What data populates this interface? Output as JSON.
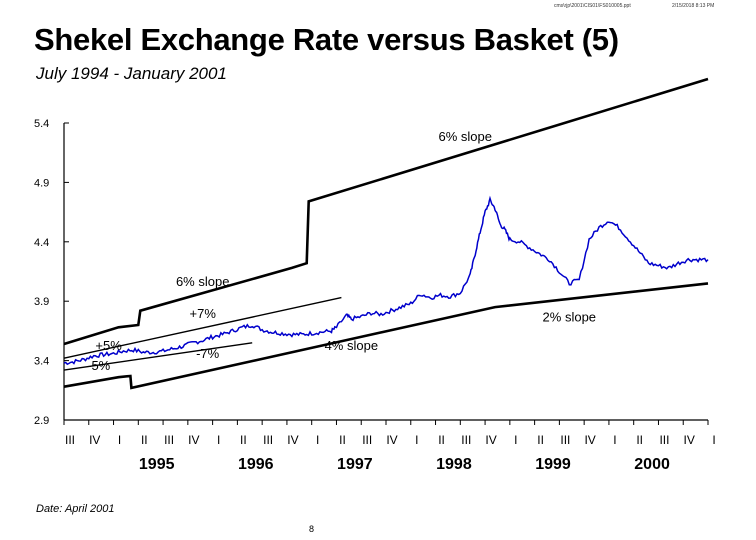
{
  "header": {
    "file_path": "cms\\rjp\\2001\\CIS01\\FS010005.ppt",
    "timestamp": "2/15/2018 8:13 PM"
  },
  "footer": {
    "date_note": "Date: April 2001",
    "page_number": "8"
  },
  "colors": {
    "series": "#0000cc",
    "band": "#000000",
    "axis": "#000000"
  },
  "chart_data": {
    "type": "line",
    "title": "Shekel Exchange Rate versus Basket (5)",
    "subtitle": "July 1994 - January 2001",
    "xlabel": "",
    "ylabel": "",
    "xlim": [
      1994.5,
      2001.0
    ],
    "ylim": [
      2.9,
      5.4
    ],
    "y_ticks": [
      "5.4",
      "4.9",
      "4.4",
      "3.9",
      "3.4",
      "2.9"
    ],
    "grid": false,
    "quarter_ticks": [
      "III",
      "IV",
      "I",
      "II",
      "III",
      "IV",
      "I",
      "II",
      "III",
      "IV",
      "I",
      "II",
      "III",
      "IV",
      "I",
      "II",
      "III",
      "IV",
      "I",
      "II",
      "III",
      "IV",
      "I",
      "II",
      "III",
      "IV",
      "I"
    ],
    "year_labels": [
      {
        "label": "1995",
        "x": 1995.375
      },
      {
        "label": "1996",
        "x": 1996.375
      },
      {
        "label": "1997",
        "x": 1997.375
      },
      {
        "label": "1998",
        "x": 1998.375
      },
      {
        "label": "1999",
        "x": 1999.375
      },
      {
        "label": "2000",
        "x": 2000.375
      }
    ],
    "series": [
      {
        "values": [
          [
            1994.5,
            3.38
          ],
          [
            1994.6,
            3.39
          ],
          [
            1994.7,
            3.41
          ],
          [
            1994.8,
            3.44
          ],
          [
            1994.9,
            3.45
          ],
          [
            1995.0,
            3.46
          ],
          [
            1995.1,
            3.48
          ],
          [
            1995.2,
            3.49
          ],
          [
            1995.3,
            3.47
          ],
          [
            1995.4,
            3.47
          ],
          [
            1995.5,
            3.48
          ],
          [
            1995.6,
            3.5
          ],
          [
            1995.7,
            3.52
          ],
          [
            1995.8,
            3.55
          ],
          [
            1995.9,
            3.57
          ],
          [
            1996.0,
            3.6
          ],
          [
            1996.1,
            3.62
          ],
          [
            1996.2,
            3.65
          ],
          [
            1996.3,
            3.68
          ],
          [
            1996.4,
            3.7
          ],
          [
            1996.5,
            3.66
          ],
          [
            1996.6,
            3.64
          ],
          [
            1996.7,
            3.63
          ],
          [
            1996.8,
            3.62
          ],
          [
            1996.9,
            3.62
          ],
          [
            1997.0,
            3.63
          ],
          [
            1997.1,
            3.64
          ],
          [
            1997.2,
            3.65
          ],
          [
            1997.25,
            3.68
          ],
          [
            1997.35,
            3.78
          ],
          [
            1997.4,
            3.75
          ],
          [
            1997.5,
            3.77
          ],
          [
            1997.6,
            3.8
          ],
          [
            1997.7,
            3.79
          ],
          [
            1997.8,
            3.82
          ],
          [
            1997.9,
            3.85
          ],
          [
            1998.0,
            3.88
          ],
          [
            1998.1,
            3.96
          ],
          [
            1998.2,
            3.93
          ],
          [
            1998.3,
            3.95
          ],
          [
            1998.4,
            3.94
          ],
          [
            1998.5,
            3.97
          ],
          [
            1998.6,
            4.12
          ],
          [
            1998.65,
            4.3
          ],
          [
            1998.7,
            4.48
          ],
          [
            1998.75,
            4.65
          ],
          [
            1998.8,
            4.75
          ],
          [
            1998.85,
            4.68
          ],
          [
            1998.9,
            4.55
          ],
          [
            1998.95,
            4.5
          ],
          [
            1999.0,
            4.42
          ],
          [
            1999.1,
            4.4
          ],
          [
            1999.2,
            4.35
          ],
          [
            1999.3,
            4.3
          ],
          [
            1999.4,
            4.25
          ],
          [
            1999.5,
            4.15
          ],
          [
            1999.6,
            4.05
          ],
          [
            1999.7,
            4.08
          ],
          [
            1999.8,
            4.42
          ],
          [
            1999.9,
            4.52
          ],
          [
            2000.0,
            4.58
          ],
          [
            2000.1,
            4.52
          ],
          [
            2000.2,
            4.42
          ],
          [
            2000.3,
            4.32
          ],
          [
            2000.4,
            4.22
          ],
          [
            2000.5,
            4.2
          ],
          [
            2000.6,
            4.18
          ],
          [
            2000.7,
            4.22
          ],
          [
            2000.8,
            4.25
          ],
          [
            2000.9,
            4.25
          ],
          [
            2001.0,
            4.25
          ]
        ]
      }
    ],
    "bands": [
      {
        "values": [
          [
            1994.5,
            3.54
          ],
          [
            1995.05,
            3.68
          ],
          [
            1995.25,
            3.7
          ],
          [
            1995.27,
            3.82
          ],
          [
            1996.8,
            4.18
          ],
          [
            1996.95,
            4.22
          ],
          [
            1996.97,
            4.74
          ],
          [
            2001.0,
            5.77
          ]
        ]
      },
      {
        "values": [
          [
            1994.5,
            3.18
          ],
          [
            1995.05,
            3.26
          ],
          [
            1995.17,
            3.27
          ],
          [
            1995.18,
            3.17
          ],
          [
            1998.85,
            3.85
          ],
          [
            2001.0,
            4.05
          ]
        ]
      },
      {
        "values": [
          [
            1994.5,
            3.42
          ],
          [
            1997.3,
            3.93
          ]
        ]
      },
      {
        "values": [
          [
            1994.5,
            3.32
          ],
          [
            1996.4,
            3.55
          ]
        ]
      }
    ],
    "annotations": [
      {
        "text": "6% slope",
        "x": 1998.55,
        "y": 5.25
      },
      {
        "text": "6% slope",
        "x": 1995.9,
        "y": 4.03
      },
      {
        "text": "+7%",
        "x": 1995.9,
        "y": 3.76
      },
      {
        "text": "2% slope",
        "x": 1999.6,
        "y": 3.73
      },
      {
        "text": "4% slope",
        "x": 1997.4,
        "y": 3.49
      },
      {
        "text": "-7%",
        "x": 1995.95,
        "y": 3.42
      },
      {
        "text": "+5%",
        "x": 1994.95,
        "y": 3.49
      },
      {
        "text": "-5%",
        "x": 1994.85,
        "y": 3.32
      }
    ]
  }
}
